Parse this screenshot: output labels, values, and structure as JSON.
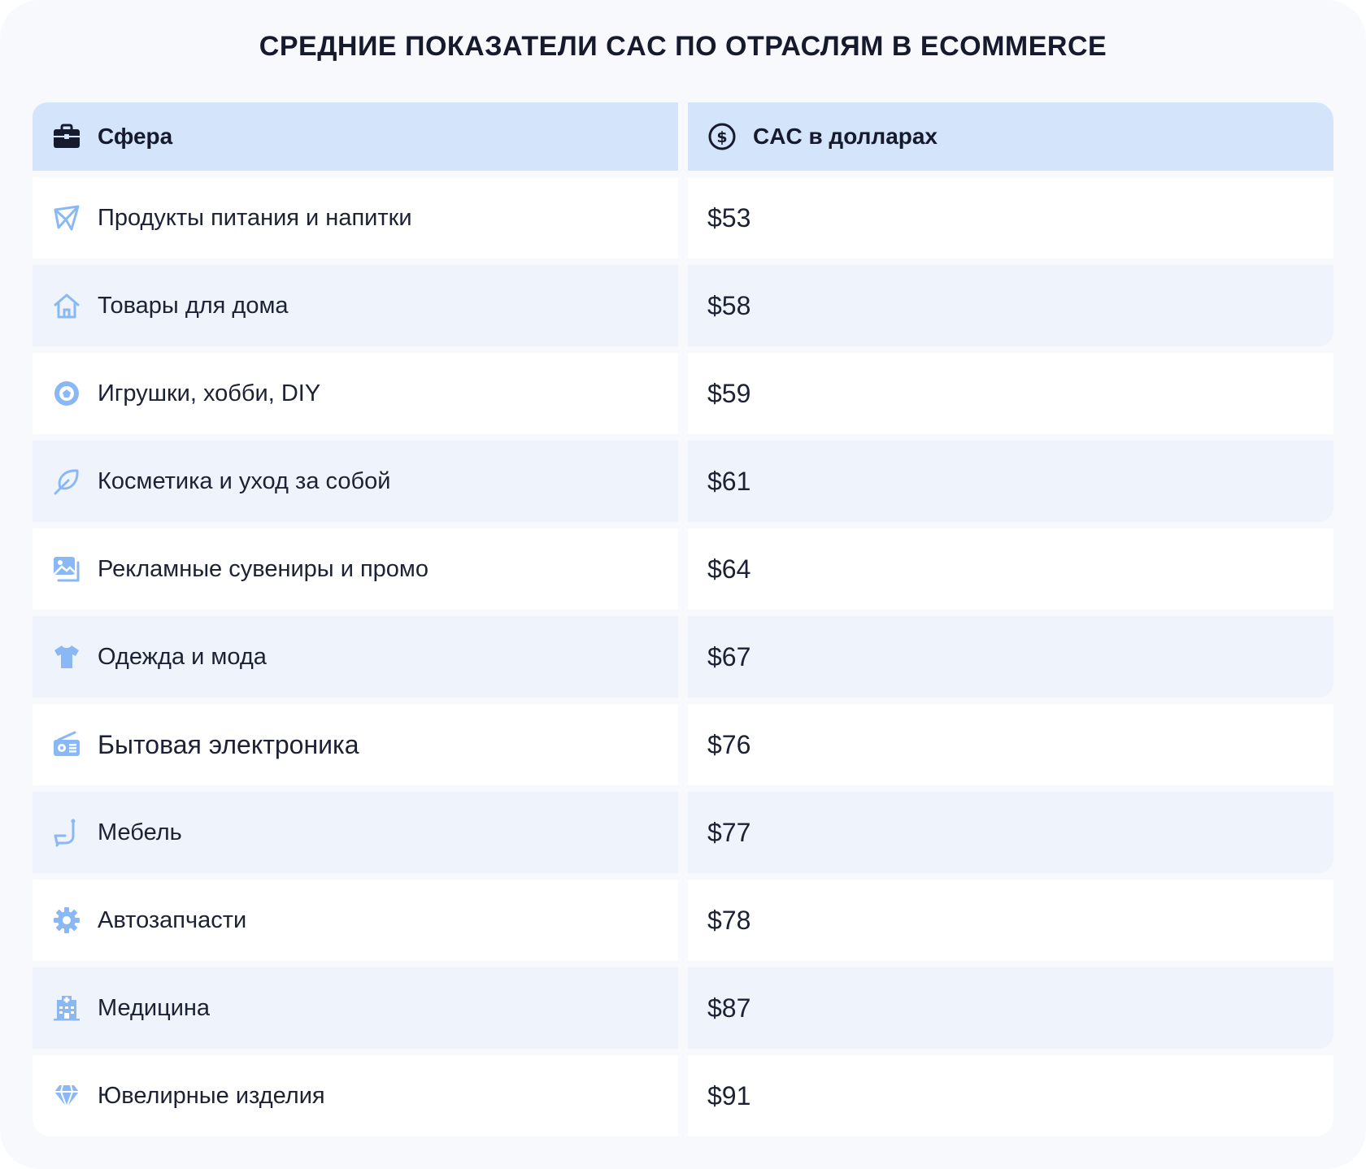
{
  "title": "СРЕДНИЕ ПОКАЗАТЕЛИ CAC ПО ОТРАСЛЯМ В ECOMMERCE",
  "chart_data": {
    "type": "table",
    "title": "СРЕДНИЕ ПОКАЗАТЕЛИ CAC ПО ОТРАСЛЯМ В ECOMMERCE",
    "columns": [
      "Сфера",
      "CAC в долларах"
    ],
    "rows": [
      {
        "sector": "Продукты питания и напитки",
        "value": "$53",
        "icon": "paper-plane-icon"
      },
      {
        "sector": "Товары для дома",
        "value": "$58",
        "icon": "house-icon"
      },
      {
        "sector": "Игрушки, хобби, DIY",
        "value": "$59",
        "icon": "soccer-ball-icon"
      },
      {
        "sector": "Косметика и уход за собой",
        "value": "$61",
        "icon": "leaf-icon"
      },
      {
        "sector": "Рекламные сувениры и промо",
        "value": "$64",
        "icon": "image-icon"
      },
      {
        "sector": "Одежда и мода",
        "value": "$67",
        "icon": "t-shirt-icon"
      },
      {
        "sector": "Бытовая электроника",
        "value": "$76",
        "icon": "radio-icon"
      },
      {
        "sector": "Мебель",
        "value": "$77",
        "icon": "chair-icon"
      },
      {
        "sector": "Автозапчасти",
        "value": "$78",
        "icon": "gear-icon"
      },
      {
        "sector": "Медицина",
        "value": "$87",
        "icon": "hospital-icon"
      },
      {
        "sector": "Ювелирные изделия",
        "value": "$91",
        "icon": "diamond-icon"
      }
    ]
  },
  "header_icons": {
    "sector": "briefcase-icon",
    "value": "dollar-coin-icon"
  },
  "colors": {
    "header_bg": "#d4e4fb",
    "row_alt_bg": "#eff4fc",
    "icon_blue": "#8ab8f5",
    "text": "#151a2d"
  }
}
